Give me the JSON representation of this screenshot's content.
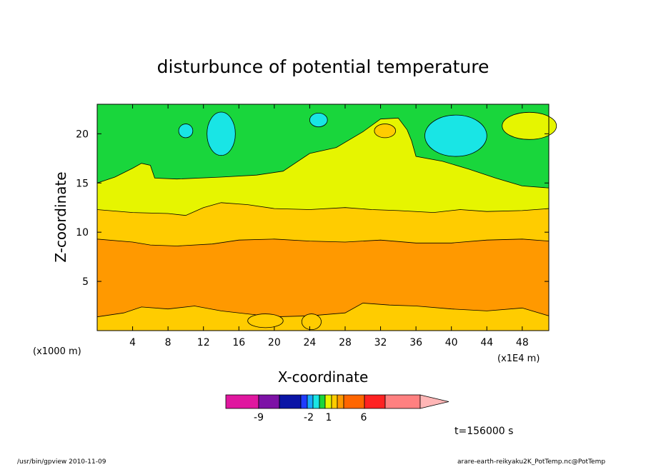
{
  "chart_data": {
    "type": "contour",
    "title": "disturbunce of potential temperature",
    "xlabel": "X-coordinate",
    "ylabel": "Z-coordinate",
    "x_unit_label": "(x1000 m)",
    "y_unit_label": "(x1E4 m)",
    "xlim": [
      0,
      51
    ],
    "ylim": [
      0,
      23
    ],
    "x_ticks": [
      4,
      8,
      12,
      16,
      20,
      24,
      28,
      32,
      36,
      40,
      44,
      48
    ],
    "y_ticks": [
      5,
      10,
      15,
      20
    ],
    "time_label": "t=156000 s",
    "colorbar": {
      "labels": [
        "-9",
        "-2",
        "1",
        "6"
      ],
      "colors": [
        "#e0179f",
        "#7d12a6",
        "#0a14a6",
        "#1f3cff",
        "#19aaff",
        "#19e5e5",
        "#19d63c",
        "#e6f500",
        "#ffcc00",
        "#ff9900",
        "#ff6600",
        "#ff2222",
        "#ff8080",
        "#ffb6b6"
      ]
    },
    "contours": [
      {
        "name": "orange-band",
        "color": "#ff9900",
        "lower": [
          [
            0,
            1.4
          ],
          [
            3,
            1.8
          ],
          [
            5,
            2.4
          ],
          [
            8,
            2.2
          ],
          [
            11,
            2.5
          ],
          [
            14,
            2.0
          ],
          [
            17,
            1.7
          ],
          [
            20,
            1.4
          ],
          [
            24,
            1.5
          ],
          [
            28,
            1.8
          ],
          [
            30,
            2.8
          ],
          [
            33,
            2.6
          ],
          [
            36,
            2.5
          ],
          [
            40,
            2.2
          ],
          [
            44,
            2.0
          ],
          [
            48,
            2.3
          ],
          [
            51,
            1.5
          ]
        ],
        "upper": [
          [
            0,
            9.3
          ],
          [
            4,
            9.0
          ],
          [
            6,
            8.7
          ],
          [
            9,
            8.6
          ],
          [
            13,
            8.8
          ],
          [
            16,
            9.2
          ],
          [
            20,
            9.3
          ],
          [
            24,
            9.1
          ],
          [
            28,
            9.0
          ],
          [
            32,
            9.2
          ],
          [
            36,
            8.9
          ],
          [
            40,
            8.9
          ],
          [
            44,
            9.2
          ],
          [
            48,
            9.3
          ],
          [
            51,
            9.1
          ]
        ]
      },
      {
        "name": "gold-band",
        "color": "#ffcc00",
        "upper": [
          [
            0,
            12.3
          ],
          [
            4,
            12.0
          ],
          [
            8,
            11.9
          ],
          [
            10,
            11.7
          ],
          [
            12,
            12.5
          ],
          [
            14,
            13.0
          ],
          [
            17,
            12.8
          ],
          [
            20,
            12.4
          ],
          [
            24,
            12.3
          ],
          [
            28,
            12.5
          ],
          [
            31,
            12.3
          ],
          [
            34,
            12.2
          ],
          [
            38,
            12.0
          ],
          [
            41,
            12.3
          ],
          [
            44,
            12.1
          ],
          [
            48,
            12.2
          ],
          [
            51,
            12.4
          ]
        ]
      },
      {
        "name": "yellow-band",
        "color": "#e6f500",
        "upper": [
          [
            0,
            15.0
          ],
          [
            2,
            15.6
          ],
          [
            4,
            16.5
          ],
          [
            5,
            17.0
          ],
          [
            6,
            16.8
          ],
          [
            6.5,
            15.5
          ],
          [
            9,
            15.4
          ],
          [
            14,
            15.6
          ],
          [
            18,
            15.8
          ],
          [
            21,
            16.2
          ],
          [
            24,
            18.0
          ],
          [
            27,
            18.6
          ],
          [
            30,
            20.2
          ],
          [
            32,
            21.5
          ],
          [
            34,
            21.6
          ],
          [
            35,
            20.4
          ],
          [
            35.5,
            19.3
          ],
          [
            36,
            17.7
          ],
          [
            39,
            17.2
          ],
          [
            42,
            16.4
          ],
          [
            45,
            15.5
          ],
          [
            48,
            14.7
          ],
          [
            51,
            14.5
          ]
        ]
      },
      {
        "name": "cyan-patches",
        "color": "#19e5e5",
        "cells": [
          [
            10,
            20.3,
            0.8,
            0.7
          ],
          [
            14,
            20.0,
            1.6,
            2.2
          ],
          [
            25,
            21.4,
            1.0,
            0.7
          ],
          [
            40.5,
            19.8,
            3.5,
            2.1
          ]
        ]
      }
    ]
  },
  "footer": {
    "program": "/usr/bin/gpview   2010-11-09",
    "source": "arare-earth-reikyaku2K_PotTemp.nc@PotTemp"
  }
}
